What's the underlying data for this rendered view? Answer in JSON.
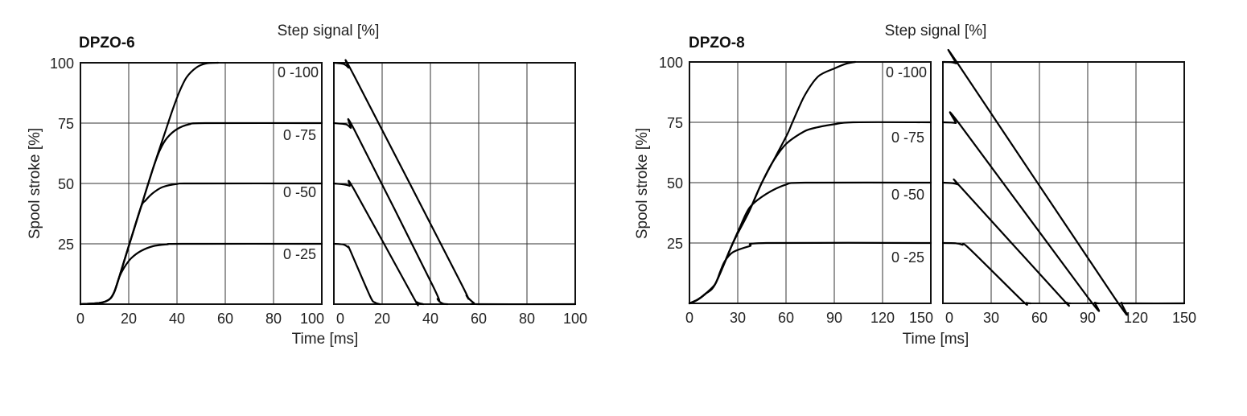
{
  "groups": [
    {
      "title": "DPZO-6",
      "step_axis_label": "Step signal [%]",
      "ylabel": "Spool stroke [%]",
      "xlabel": "Time [ms]",
      "step_labels": [
        "0 -100",
        "0 -75",
        "0 -50",
        "0 -25"
      ]
    },
    {
      "title": "DPZO-8",
      "step_axis_label": "Step signal [%]",
      "ylabel": "Spool stroke [%]",
      "xlabel": "Time [ms]",
      "step_labels": [
        "0 -100",
        "0 -75",
        "0 -50",
        "0 -25"
      ]
    }
  ],
  "chart_data": [
    {
      "type": "line",
      "group": "DPZO-6",
      "xlabel": "Time [ms]",
      "ylabel": "Spool stroke [%]",
      "xlim": [
        0,
        100
      ],
      "ylim": [
        0,
        100
      ],
      "xticks": [
        0,
        20,
        40,
        60,
        80,
        100
      ],
      "yticks": [
        25,
        50,
        75,
        100
      ],
      "grid": true,
      "series": [
        {
          "name": "0 -100",
          "points": [
            [
              0,
              0
            ],
            [
              8,
              0.5
            ],
            [
              12,
              2
            ],
            [
              14,
              5
            ],
            [
              16,
              11
            ],
            [
              20,
              24
            ],
            [
              25,
              40
            ],
            [
              30,
              56
            ],
            [
              35,
              71
            ],
            [
              38,
              80
            ],
            [
              41,
              88
            ],
            [
              44,
              94
            ],
            [
              48,
              98
            ],
            [
              52,
              99.7
            ],
            [
              57,
              100
            ]
          ]
        },
        {
          "name": "0 -75",
          "points": [
            [
              0,
              0
            ],
            [
              8,
              0.5
            ],
            [
              12,
              2
            ],
            [
              14,
              5
            ],
            [
              16,
              11
            ],
            [
              20,
              24
            ],
            [
              25,
              40
            ],
            [
              30,
              56
            ],
            [
              33,
              64
            ],
            [
              36,
              69
            ],
            [
              40,
              72.5
            ],
            [
              45,
              74.5
            ],
            [
              52,
              75
            ],
            [
              100,
              75
            ]
          ]
        },
        {
          "name": "0 -50",
          "points": [
            [
              0,
              0
            ],
            [
              8,
              0.5
            ],
            [
              12,
              2
            ],
            [
              14,
              5
            ],
            [
              16,
              11
            ],
            [
              20,
              24
            ],
            [
              25,
              40
            ],
            [
              27,
              43
            ],
            [
              30,
              46
            ],
            [
              34,
              48.5
            ],
            [
              40,
              49.8
            ],
            [
              47,
              50
            ],
            [
              100,
              50
            ]
          ]
        },
        {
          "name": "0 -25",
          "points": [
            [
              0,
              0
            ],
            [
              8,
              0.5
            ],
            [
              12,
              2
            ],
            [
              14,
              5
            ],
            [
              16,
              11
            ],
            [
              18,
              15
            ],
            [
              21,
              19
            ],
            [
              25,
              22
            ],
            [
              30,
              24
            ],
            [
              36,
              24.8
            ],
            [
              42,
              25
            ],
            [
              100,
              25
            ]
          ]
        }
      ]
    },
    {
      "type": "line",
      "group": "DPZO-6",
      "xlim": [
        0,
        100
      ],
      "ylim": [
        0,
        100
      ],
      "xticks": [
        0,
        20,
        40,
        60,
        80,
        100
      ],
      "yticks": [
        25,
        50,
        75,
        100
      ],
      "grid": true,
      "series": [
        {
          "name": "0 -100",
          "points": [
            [
              0,
              100
            ],
            [
              4,
              99.5
            ],
            [
              6,
              98
            ],
            [
              8.5,
              94.4
            ],
            [
              52,
              10
            ],
            [
              55,
              3.5
            ],
            [
              58,
              0.5
            ],
            [
              60,
              0
            ],
            [
              100,
              0
            ]
          ]
        },
        {
          "name": "0 -75",
          "points": [
            [
              0,
              75
            ],
            [
              5,
              74.5
            ],
            [
              7,
              73
            ],
            [
              8.5,
              72.2
            ],
            [
              40.9,
              7.8
            ],
            [
              43,
              2
            ],
            [
              45,
              0.3
            ],
            [
              47,
              0
            ]
          ]
        },
        {
          "name": "0 -50",
          "points": [
            [
              0,
              50
            ],
            [
              4,
              49.6
            ],
            [
              6.5,
              49
            ],
            [
              8.2,
              47.8
            ],
            [
              32.7,
              3.3
            ],
            [
              34.5,
              0.8
            ],
            [
              37,
              0
            ]
          ]
        },
        {
          "name": "0 -25",
          "points": [
            [
              0,
              25
            ],
            [
              4,
              24.7
            ],
            [
              6,
              23.5
            ],
            [
              6.8,
              22.2
            ],
            [
              15,
              3.3
            ],
            [
              17,
              0.7
            ],
            [
              19,
              0
            ]
          ]
        }
      ]
    },
    {
      "type": "line",
      "group": "DPZO-8",
      "xlabel": "Time [ms]",
      "ylabel": "Spool stroke [%]",
      "xlim": [
        0,
        150
      ],
      "ylim": [
        0,
        100
      ],
      "xticks": [
        0,
        30,
        60,
        90,
        120,
        150
      ],
      "yticks": [
        25,
        50,
        75,
        100
      ],
      "grid": true,
      "series": [
        {
          "name": "0 -100",
          "points": [
            [
              0,
              0
            ],
            [
              5,
              1.5
            ],
            [
              10,
              4
            ],
            [
              16,
              8
            ],
            [
              27,
              25
            ],
            [
              37,
              38
            ],
            [
              45,
              50
            ],
            [
              60,
              69
            ],
            [
              64,
              75
            ],
            [
              71.5,
              86
            ],
            [
              80,
              94
            ],
            [
              90,
              97.3
            ],
            [
              97,
              99.2
            ],
            [
              103,
              100
            ]
          ]
        },
        {
          "name": "0 -75",
          "points": [
            [
              0,
              0
            ],
            [
              5,
              1.5
            ],
            [
              10,
              4
            ],
            [
              16,
              8
            ],
            [
              27,
              25
            ],
            [
              37,
              38
            ],
            [
              45,
              50
            ],
            [
              51.5,
              58.3
            ],
            [
              60,
              66
            ],
            [
              71.5,
              71.3
            ],
            [
              80,
              73
            ],
            [
              90,
              74.2
            ],
            [
              101.7,
              75
            ],
            [
              150,
              75
            ]
          ]
        },
        {
          "name": "0 -50",
          "points": [
            [
              0,
              0
            ],
            [
              5,
              1.5
            ],
            [
              10,
              4
            ],
            [
              16,
              8
            ],
            [
              27,
              25
            ],
            [
              31,
              31
            ],
            [
              37.4,
              39.7
            ],
            [
              47.7,
              45.3
            ],
            [
              60,
              49.2
            ],
            [
              72,
              50
            ],
            [
              150,
              50
            ]
          ]
        },
        {
          "name": "0 -25",
          "points": [
            [
              0,
              0
            ],
            [
              5,
              1.5
            ],
            [
              10,
              4
            ],
            [
              16,
              8
            ],
            [
              19,
              13
            ],
            [
              22,
              17.5
            ],
            [
              27,
              21.2
            ],
            [
              37.4,
              23.7
            ],
            [
              47.7,
              25
            ],
            [
              150,
              25
            ]
          ]
        }
      ]
    },
    {
      "type": "line",
      "group": "DPZO-8",
      "xlim": [
        0,
        150
      ],
      "ylim": [
        0,
        100
      ],
      "xticks": [
        0,
        30,
        60,
        90,
        120,
        150
      ],
      "yticks": [
        25,
        50,
        75,
        100
      ],
      "grid": true,
      "series": [
        {
          "name": "0 -100",
          "points": [
            [
              0,
              100
            ],
            [
              5,
              99.9
            ],
            [
              8.2,
              99.4
            ],
            [
              10.3,
              98.3
            ],
            [
              106.8,
              2.2
            ],
            [
              111,
              0.3
            ],
            [
              115,
              0
            ],
            [
              150,
              0
            ]
          ]
        },
        {
          "name": "0 -75",
          "points": [
            [
              0,
              75
            ],
            [
              5,
              74.9
            ],
            [
              8,
              74.7
            ],
            [
              10.3,
              74.3
            ],
            [
              90.4,
              2.2
            ],
            [
              94.5,
              0.3
            ],
            [
              96.6,
              0
            ]
          ]
        },
        {
          "name": "0 -50",
          "points": [
            [
              0,
              50
            ],
            [
              6,
              49.8
            ],
            [
              9.5,
              49.2
            ],
            [
              11.3,
              48
            ],
            [
              73,
              2.8
            ],
            [
              77,
              0.3
            ],
            [
              79,
              0
            ]
          ]
        },
        {
          "name": "0 -25",
          "points": [
            [
              0,
              25
            ],
            [
              8,
              24.9
            ],
            [
              12,
              24.3
            ],
            [
              16.4,
              22.7
            ],
            [
              49.3,
              1.1
            ],
            [
              52,
              0.2
            ],
            [
              54.4,
              0
            ]
          ]
        }
      ]
    }
  ]
}
